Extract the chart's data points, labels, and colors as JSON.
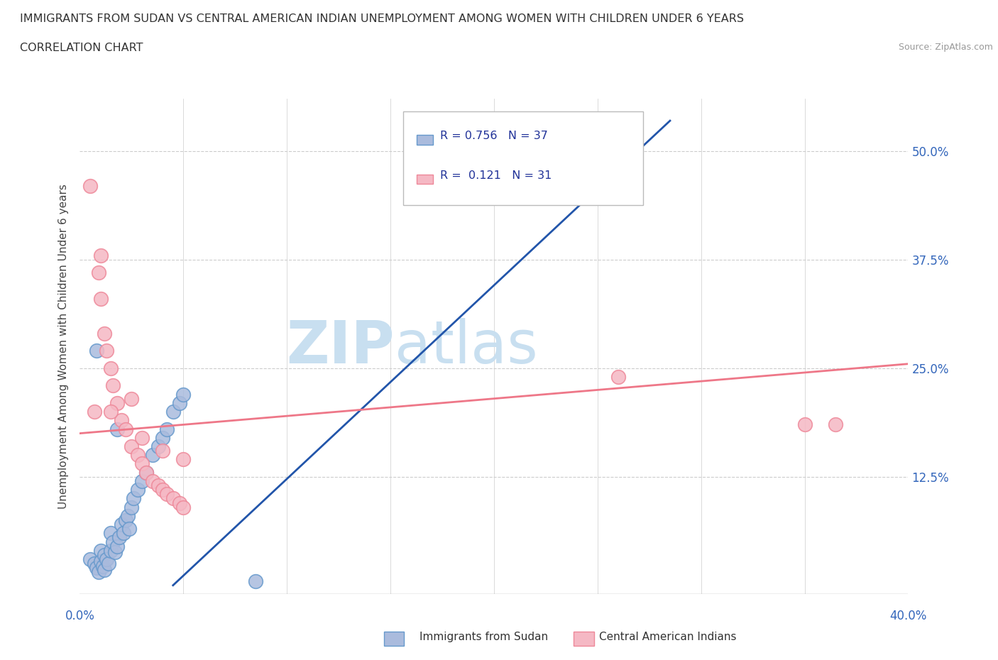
{
  "title_line1": "IMMIGRANTS FROM SUDAN VS CENTRAL AMERICAN INDIAN UNEMPLOYMENT AMONG WOMEN WITH CHILDREN UNDER 6 YEARS",
  "title_line2": "CORRELATION CHART",
  "source_text": "Source: ZipAtlas.com",
  "ylabel": "Unemployment Among Women with Children Under 6 years",
  "xlim": [
    0.0,
    0.4
  ],
  "ylim": [
    -0.01,
    0.56
  ],
  "x_ticks": [
    0.0,
    0.05,
    0.1,
    0.15,
    0.2,
    0.25,
    0.3,
    0.35,
    0.4
  ],
  "y_tick_positions": [
    0.0,
    0.125,
    0.25,
    0.375,
    0.5
  ],
  "y_tick_labels": [
    "",
    "12.5%",
    "25.0%",
    "37.5%",
    "50.0%"
  ],
  "grid_color": "#cccccc",
  "background_color": "#ffffff",
  "watermark_text1": "ZIP",
  "watermark_text2": "atlas",
  "watermark_color1": "#c8dff0",
  "watermark_color2": "#c8dff0",
  "sudan_edge_color": "#6699cc",
  "sudan_face_color": "#aabbdd",
  "central_edge_color": "#ee8899",
  "central_face_color": "#f5b8c4",
  "sudan_R": 0.756,
  "sudan_N": 37,
  "central_R": 0.121,
  "central_N": 31,
  "sudan_line_color": "#2255aa",
  "central_line_color": "#ee7788",
  "sudan_line_x0": 0.045,
  "sudan_line_y0": 0.0,
  "sudan_line_x1": 0.285,
  "sudan_line_y1": 0.535,
  "central_line_x0": 0.0,
  "central_line_y0": 0.175,
  "central_line_x1": 0.4,
  "central_line_y1": 0.255,
  "sudan_points_x": [
    0.005,
    0.007,
    0.008,
    0.009,
    0.01,
    0.01,
    0.011,
    0.012,
    0.012,
    0.013,
    0.014,
    0.015,
    0.015,
    0.016,
    0.017,
    0.018,
    0.019,
    0.02,
    0.021,
    0.022,
    0.023,
    0.024,
    0.025,
    0.026,
    0.028,
    0.03,
    0.032,
    0.035,
    0.038,
    0.04,
    0.042,
    0.045,
    0.048,
    0.05,
    0.008,
    0.018,
    0.085
  ],
  "sudan_points_y": [
    0.03,
    0.025,
    0.02,
    0.015,
    0.04,
    0.028,
    0.022,
    0.035,
    0.018,
    0.03,
    0.025,
    0.06,
    0.04,
    0.05,
    0.038,
    0.045,
    0.055,
    0.07,
    0.06,
    0.075,
    0.08,
    0.065,
    0.09,
    0.1,
    0.11,
    0.12,
    0.13,
    0.15,
    0.16,
    0.17,
    0.18,
    0.2,
    0.21,
    0.22,
    0.27,
    0.18,
    0.005
  ],
  "central_points_x": [
    0.005,
    0.007,
    0.009,
    0.01,
    0.012,
    0.013,
    0.015,
    0.016,
    0.018,
    0.02,
    0.022,
    0.025,
    0.028,
    0.03,
    0.032,
    0.035,
    0.038,
    0.04,
    0.042,
    0.045,
    0.048,
    0.05,
    0.01,
    0.015,
    0.025,
    0.03,
    0.04,
    0.05,
    0.26,
    0.35,
    0.365
  ],
  "central_points_y": [
    0.46,
    0.2,
    0.36,
    0.33,
    0.29,
    0.27,
    0.25,
    0.23,
    0.21,
    0.19,
    0.18,
    0.16,
    0.15,
    0.14,
    0.13,
    0.12,
    0.115,
    0.11,
    0.105,
    0.1,
    0.095,
    0.09,
    0.38,
    0.2,
    0.215,
    0.17,
    0.155,
    0.145,
    0.24,
    0.185,
    0.185
  ]
}
